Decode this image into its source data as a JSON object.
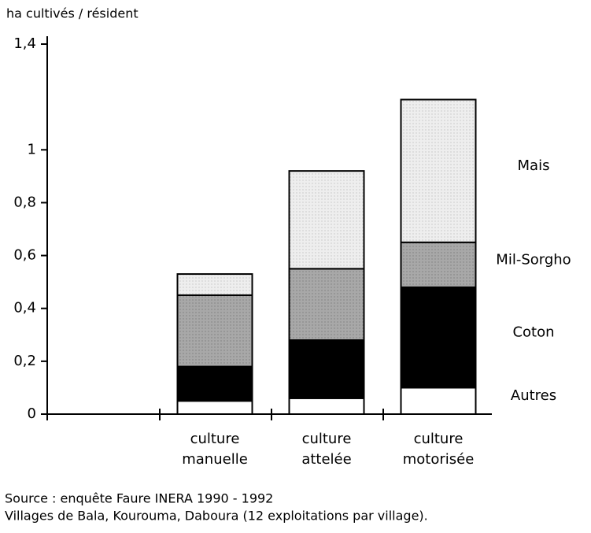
{
  "chart_data": {
    "type": "stacked_bar",
    "y_label": "ha cultivés / résident",
    "categories": [
      "culture manuelle",
      "culture attelée",
      "culture motorisée"
    ],
    "series": [
      {
        "name": "Autres",
        "color": "#ffffff",
        "values": [
          0.05,
          0.06,
          0.1
        ]
      },
      {
        "name": "Coton",
        "color": "#000000",
        "values": [
          0.13,
          0.22,
          0.38
        ]
      },
      {
        "name": "Mil-Sorgho",
        "color": "#a8a8a8",
        "values": [
          0.27,
          0.27,
          0.17
        ]
      },
      {
        "name": "Mais",
        "color": "#eeeeee",
        "values": [
          0.08,
          0.37,
          0.54
        ]
      }
    ],
    "ylim": [
      0,
      1.4
    ],
    "yticks": [
      0,
      {
        "value": 0.2,
        "label": "0,2"
      },
      {
        "value": 0.4,
        "label": "0,4"
      },
      {
        "value": 0.6,
        "label": "0,6"
      },
      {
        "value": 0.8,
        "label": "0,8"
      },
      1,
      {
        "value": 1.4,
        "label": "1,4"
      }
    ],
    "notes": [
      "Source : enquête Faure INERA 1990 - 1992",
      "Villages  de Bala, Kourouma, Daboura (12 exploitations par village)."
    ]
  }
}
